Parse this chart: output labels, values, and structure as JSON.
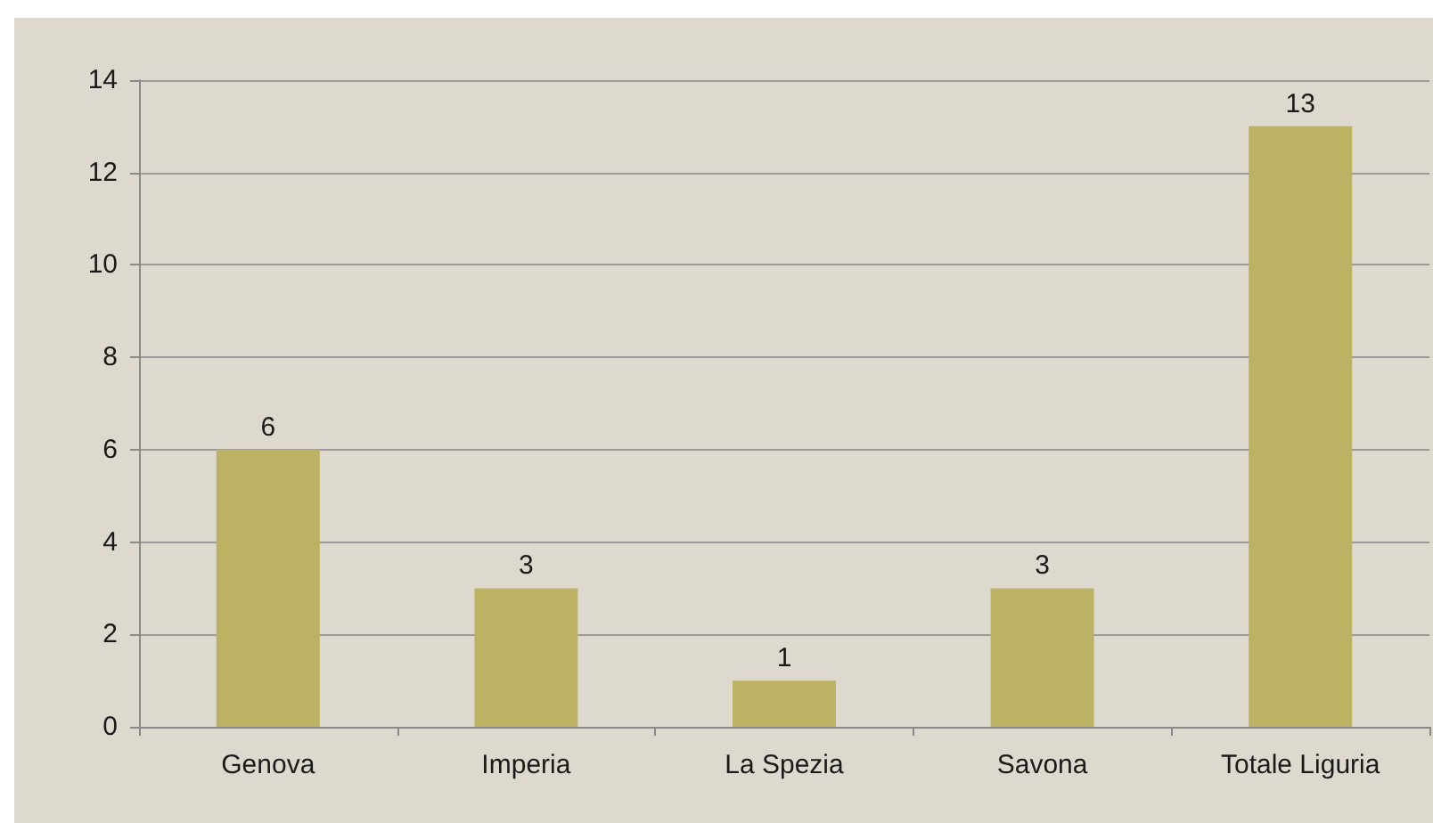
{
  "chart_data": {
    "type": "bar",
    "categories": [
      "Genova",
      "Imperia",
      "La Spezia",
      "Savona",
      "Totale Liguria"
    ],
    "values": [
      6,
      3,
      1,
      3,
      13
    ],
    "color": "#bcb264",
    "ylim": [
      0,
      14
    ],
    "yticks": [
      0,
      2,
      4,
      6,
      8,
      10,
      12,
      14
    ],
    "grid": "y",
    "data_labels": true
  }
}
